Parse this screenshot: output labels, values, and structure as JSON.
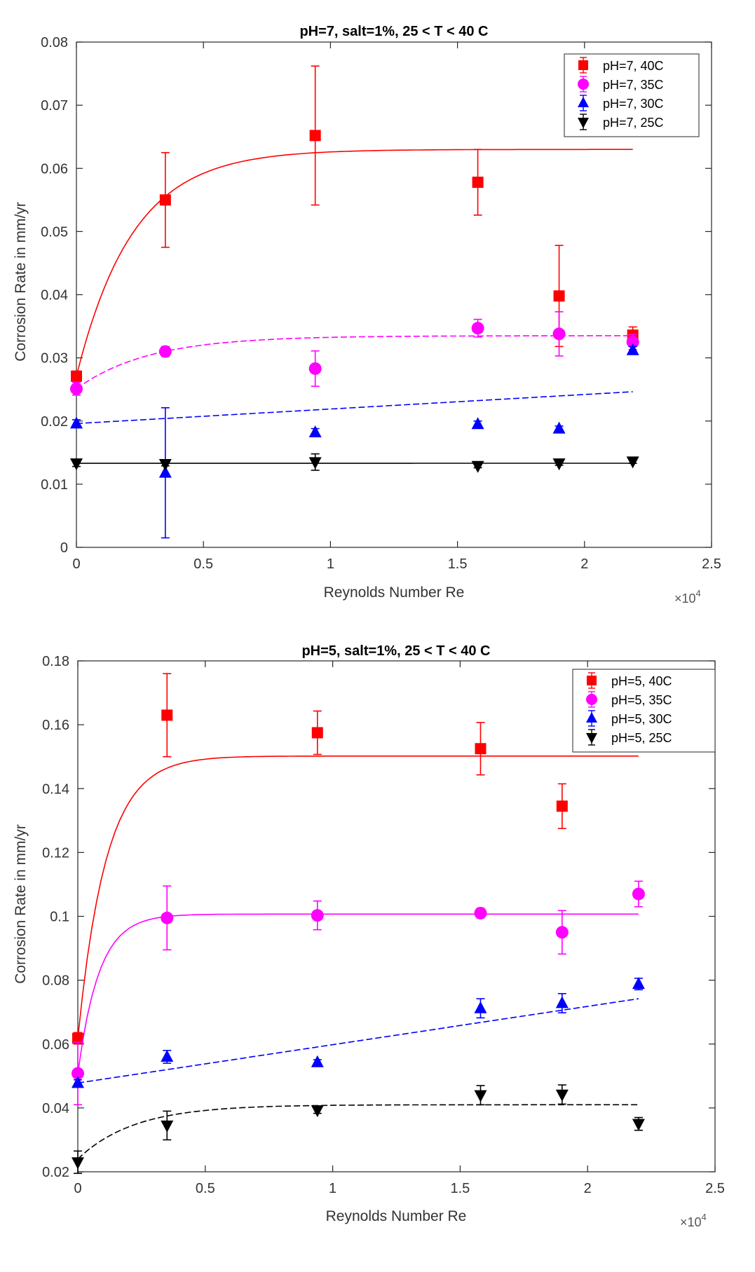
{
  "chart_data": [
    {
      "type": "scatter",
      "title": "pH=7, salt=1%, 25 < T < 40 C",
      "xlabel": "Reynolds Number Re",
      "ylabel": "Corrosion Rate in mm/yr",
      "x_exponent_label": "×10",
      "x_exponent": "4",
      "xlim": [
        0,
        25000
      ],
      "ylim": [
        0,
        0.08
      ],
      "xticks": [
        0,
        5000,
        10000,
        15000,
        20000,
        25000
      ],
      "xtick_labels": [
        "0",
        "0.5",
        "1",
        "1.5",
        "2",
        "2.5"
      ],
      "yticks": [
        0,
        0.01,
        0.02,
        0.03,
        0.04,
        0.05,
        0.06,
        0.07,
        0.08
      ],
      "ytick_labels": [
        "0",
        "0.01",
        "0.02",
        "0.03",
        "0.04",
        "0.05",
        "0.06",
        "0.07",
        "0.08"
      ],
      "legend_position": "top-right",
      "series": [
        {
          "name": "pH=7, 40C",
          "color": "#ff0000",
          "marker": "square",
          "x": [
            0,
            3500,
            9400,
            15800,
            19000,
            21900
          ],
          "y": [
            0.0271,
            0.055,
            0.0652,
            0.0578,
            0.0398,
            0.0336
          ],
          "err": [
            0.0008,
            0.0075,
            0.011,
            0.0052,
            0.008,
            0.0013
          ],
          "fit": {
            "kind": "exp",
            "y0": 0.0271,
            "yinf": 0.063,
            "rate": 0.00045,
            "dash": false
          }
        },
        {
          "name": "pH=7, 35C",
          "color": "#ff00ff",
          "marker": "circle",
          "x": [
            0,
            3500,
            9400,
            15800,
            19000,
            21900
          ],
          "y": [
            0.0251,
            0.031,
            0.0283,
            0.0347,
            0.0338,
            0.0325
          ],
          "err": [
            0.001,
            0.0008,
            0.0028,
            0.0014,
            0.0035,
            0.0012
          ],
          "fit": {
            "kind": "exp",
            "y0": 0.0251,
            "yinf": 0.0335,
            "rate": 0.00035,
            "dash": true
          }
        },
        {
          "name": "pH=7, 30C",
          "color": "#0000ff",
          "marker": "triangle-up",
          "x": [
            0,
            3500,
            9400,
            15800,
            19000,
            21900
          ],
          "y": [
            0.0196,
            0.0118,
            0.0182,
            0.0195,
            0.0188,
            0.0312
          ],
          "err": [
            0.0006,
            0.0103,
            0.0006,
            0.0005,
            0.0004,
            0.0006
          ],
          "fit": {
            "kind": "linear",
            "a": 0.0196,
            "b": 2.3e-07,
            "dash": true
          }
        },
        {
          "name": "pH=7, 25C",
          "color": "#000000",
          "marker": "triangle-down",
          "x": [
            0,
            3500,
            9400,
            15800,
            19000,
            21900
          ],
          "y": [
            0.0133,
            0.0132,
            0.0135,
            0.0129,
            0.0133,
            0.0136
          ],
          "err": [
            0.0005,
            0.0003,
            0.0013,
            0.0003,
            0.0003,
            0.0003
          ],
          "fit": {
            "kind": "linear",
            "a": 0.0133,
            "b": 7e-10,
            "dash": false
          }
        }
      ]
    },
    {
      "type": "scatter",
      "title": "pH=5, salt=1%, 25 < T < 40 C",
      "xlabel": "Reynolds Number Re",
      "ylabel": "Corrosion Rate in mm/yr",
      "x_exponent_label": "×10",
      "x_exponent": "4",
      "xlim": [
        0,
        25000
      ],
      "ylim": [
        0.02,
        0.18
      ],
      "xticks": [
        0,
        5000,
        10000,
        15000,
        20000,
        25000
      ],
      "xtick_labels": [
        "0",
        "0.5",
        "1",
        "1.5",
        "2",
        "2.5"
      ],
      "yticks": [
        0.02,
        0.04,
        0.06,
        0.08,
        0.1,
        0.12,
        0.14,
        0.16,
        0.18
      ],
      "ytick_labels": [
        "0.02",
        "0.04",
        "0.06",
        "0.08",
        "0.1",
        "0.12",
        "0.14",
        "0.16",
        "0.18"
      ],
      "legend_position": "top-right",
      "series": [
        {
          "name": "pH=5, 40C",
          "color": "#ff0000",
          "marker": "square",
          "x": [
            0,
            3500,
            9400,
            15800,
            19000,
            22000
          ],
          "y": [
            0.0618,
            0.163,
            0.1575,
            0.1525,
            0.1345,
            null
          ],
          "err": [
            0.0018,
            0.013,
            0.0068,
            0.0082,
            0.007,
            null
          ],
          "fit": {
            "kind": "exp",
            "y0": 0.0618,
            "yinf": 0.1502,
            "rate": 0.0009,
            "dash": false
          }
        },
        {
          "name": "pH=5, 35C",
          "color": "#ff00ff",
          "marker": "circle",
          "x": [
            0,
            3500,
            9400,
            15800,
            19000,
            22000
          ],
          "y": [
            0.0508,
            0.0995,
            0.1003,
            0.101,
            0.095,
            0.107
          ],
          "err": [
            0.0098,
            0.01,
            0.0045,
            0.0015,
            0.0068,
            0.004
          ],
          "fit": {
            "kind": "exp",
            "y0": 0.0508,
            "yinf": 0.1007,
            "rate": 0.0012,
            "dash": false
          }
        },
        {
          "name": "pH=5, 30C",
          "color": "#0000ff",
          "marker": "triangle-up",
          "x": [
            0,
            3500,
            9400,
            15800,
            19000,
            22000
          ],
          "y": [
            0.0478,
            0.056,
            0.0543,
            0.0712,
            0.0728,
            0.0788
          ],
          "err": [
            0.001,
            0.002,
            0.0008,
            0.003,
            0.003,
            0.0018
          ],
          "fit": {
            "kind": "linear",
            "a": 0.0478,
            "b": 1.2e-06,
            "dash": true
          }
        },
        {
          "name": "pH=5, 25C",
          "color": "#000000",
          "marker": "triangle-down",
          "x": [
            0,
            3500,
            9400,
            15800,
            19000,
            22000
          ],
          "y": [
            0.023,
            0.0345,
            0.0393,
            0.044,
            0.0442,
            0.035
          ],
          "err": [
            0.0035,
            0.0045,
            0.001,
            0.003,
            0.003,
            0.002
          ],
          "fit": {
            "kind": "exp",
            "y0": 0.024,
            "yinf": 0.041,
            "rate": 0.00045,
            "dash": true
          }
        }
      ]
    }
  ]
}
